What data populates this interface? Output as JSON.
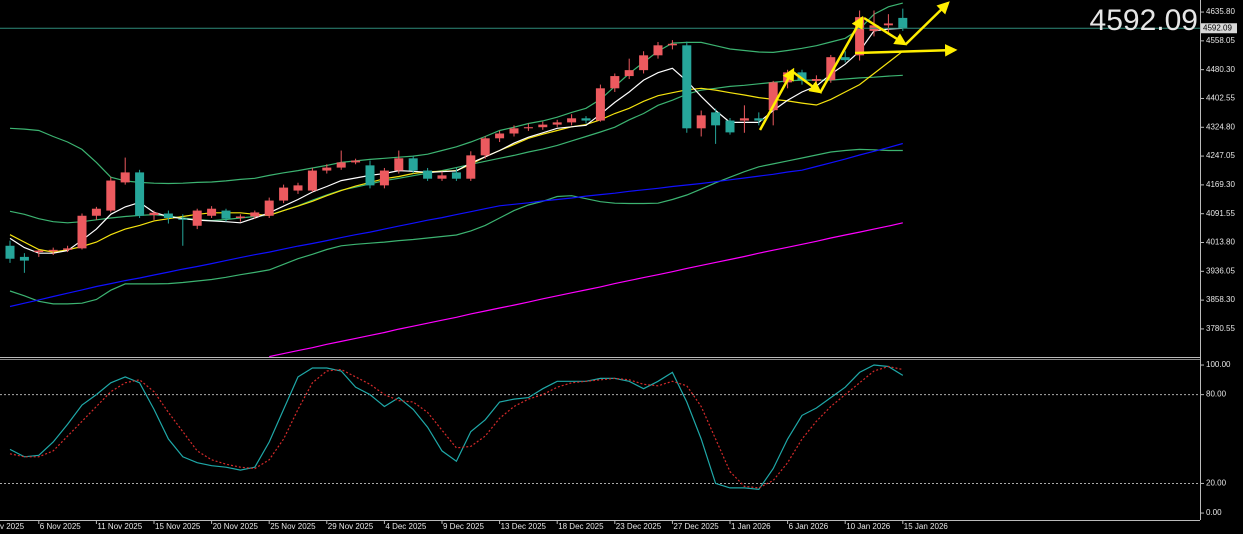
{
  "chart_data": [
    {
      "type": "candlestick",
      "categories": [
        null,
        null,
        "6 Nov 2025",
        null,
        null,
        null,
        "11 Nov 2025",
        null,
        null,
        null,
        "15 Nov 2025",
        null,
        null,
        null,
        "20 Nov 2025",
        null,
        null,
        null,
        "25 Nov 2025",
        null,
        null,
        null,
        "29 Nov 2025",
        null,
        null,
        null,
        "4 Dec 2025",
        null,
        null,
        null,
        "9 Dec 2025",
        null,
        null,
        null,
        "13 Dec 2025",
        null,
        null,
        null,
        "18 Dec 2025",
        null,
        null,
        null,
        "23 Dec 2025",
        null,
        null,
        null,
        "27 Dec 2025",
        null,
        null,
        null,
        "1 Jan 2026",
        null,
        null,
        null,
        "6 Jan 2026",
        null,
        null,
        null,
        "10 Jan 2026",
        null,
        null,
        null,
        "15 Jan 2026"
      ],
      "date_label_cut": "v 2025",
      "open": [
        4005,
        3975,
        3988,
        3990,
        3994,
        3998,
        4086,
        4100,
        4176,
        4203,
        4088,
        4092,
        4078,
        4059,
        4086,
        4100,
        4080,
        4084,
        4086,
        4127,
        4154,
        4154,
        4208,
        4216,
        4230,
        4222,
        4168,
        4208,
        4241,
        4208,
        4186,
        4203,
        4186,
        4249,
        4295,
        4308,
        4322,
        4325,
        4332,
        4338,
        4349,
        4343,
        4430,
        4463,
        4479,
        4519,
        4546,
        4546,
        4322,
        4365,
        4343,
        4343,
        4349,
        4371,
        4446,
        4473,
        4450,
        4452,
        4514,
        4519,
        4585,
        4600,
        4620
      ],
      "high": [
        4019,
        3985,
        3995,
        4000,
        4005,
        4092,
        4110,
        4190,
        4243,
        4210,
        4100,
        4100,
        4090,
        4105,
        4112,
        4105,
        4090,
        4100,
        4135,
        4170,
        4175,
        4215,
        4225,
        4262,
        4240,
        4235,
        4215,
        4262,
        4248,
        4215,
        4205,
        4215,
        4260,
        4300,
        4315,
        4330,
        4335,
        4340,
        4345,
        4360,
        4355,
        4440,
        4470,
        4510,
        4530,
        4555,
        4560,
        4556,
        4370,
        4375,
        4350,
        4384,
        4365,
        4450,
        4480,
        4480,
        4465,
        4520,
        4530,
        4640,
        4640,
        4630,
        4645
      ],
      "low": [
        3959,
        3932,
        3975,
        3980,
        3988,
        3995,
        4075,
        4095,
        4170,
        4080,
        4075,
        4065,
        4005,
        4050,
        4080,
        4070,
        4070,
        4078,
        4080,
        4120,
        4145,
        4150,
        4200,
        4210,
        4225,
        4160,
        4160,
        4200,
        4200,
        4180,
        4180,
        4180,
        4180,
        4240,
        4285,
        4300,
        4315,
        4318,
        4325,
        4330,
        4335,
        4340,
        4420,
        4455,
        4470,
        4510,
        4535,
        4310,
        4300,
        4280,
        4305,
        4310,
        4330,
        4330,
        4430,
        4440,
        4440,
        4445,
        4500,
        4505,
        4570,
        4580,
        4585
      ],
      "close": [
        3970,
        3965,
        3992,
        3994,
        3998,
        4086,
        4105,
        4181,
        4203,
        4086,
        4094,
        4080,
        4075,
        4100,
        4105,
        4078,
        4084,
        4095,
        4127,
        4162,
        4168,
        4208,
        4216,
        4230,
        4235,
        4168,
        4208,
        4241,
        4208,
        4186,
        4195,
        4186,
        4249,
        4295,
        4308,
        4322,
        4325,
        4332,
        4338,
        4349,
        4343,
        4430,
        4463,
        4479,
        4519,
        4546,
        4550,
        4322,
        4357,
        4330,
        4311,
        4349,
        4343,
        4446,
        4473,
        4452,
        4455,
        4514,
        4506,
        4622,
        4600,
        4605,
        4592.09
      ],
      "up_color": "#ec5a5f",
      "down_color": "#26a69a",
      "series": [
        {
          "color": "#3cb371",
          "values": [
            4322,
            4320,
            4316,
            4300,
            4285,
            4265,
            4230,
            4190,
            4180,
            4176,
            4174,
            4173,
            4174,
            4176,
            4177,
            4180,
            4184,
            4187,
            4195,
            4202,
            4208,
            4215,
            4222,
            4230,
            4234,
            4238,
            4241,
            4244,
            4247,
            4252,
            4262,
            4272,
            4285,
            4300,
            4316,
            4325,
            4335,
            4342,
            4352,
            4365,
            4376,
            4400,
            4435,
            4470,
            4500,
            4530,
            4552,
            4554,
            4554,
            4545,
            4536,
            4532,
            4528,
            4527,
            4532,
            4538,
            4545,
            4555,
            4565,
            4590,
            4630,
            4650,
            4660
          ]
        },
        {
          "color": "#3cb371",
          "values": [
            4098,
            4090,
            4078,
            4070,
            4067,
            4070,
            4075,
            4080,
            4084,
            4087,
            4089,
            4085,
            4080,
            4076,
            4073,
            4076,
            4080,
            4084,
            4088,
            4100,
            4113,
            4128,
            4142,
            4155,
            4163,
            4172,
            4181,
            4187,
            4194,
            4201,
            4208,
            4216,
            4225,
            4233,
            4241,
            4249,
            4258,
            4266,
            4276,
            4288,
            4300,
            4312,
            4325,
            4345,
            4362,
            4384,
            4398,
            4414,
            4425,
            4430,
            4435,
            4438,
            4442,
            4446,
            4450,
            4452,
            4452,
            4452,
            4455,
            4458,
            4460,
            4463,
            4465
          ]
        },
        {
          "color": "#3cb371",
          "values": [
            3883,
            3870,
            3855,
            3848,
            3848,
            3850,
            3860,
            3885,
            3902,
            3902,
            3902,
            3903,
            3906,
            3910,
            3914,
            3920,
            3927,
            3933,
            3940,
            3955,
            3970,
            3982,
            3995,
            4005,
            4009,
            4012,
            4015,
            4019,
            4022,
            4026,
            4030,
            4034,
            4045,
            4060,
            4080,
            4100,
            4115,
            4125,
            4138,
            4140,
            4132,
            4124,
            4120,
            4119,
            4119,
            4120,
            4130,
            4142,
            4158,
            4175,
            4190,
            4205,
            4218,
            4226,
            4234,
            4242,
            4250,
            4258,
            4262,
            4265,
            4264,
            4262,
            4262
          ]
        },
        {
          "color": "#1010ff",
          "values": [
            3841,
            3850,
            3859,
            3868,
            3877,
            3886,
            3895,
            3903,
            3911,
            3918,
            3926,
            3934,
            3942,
            3949,
            3957,
            3965,
            3973,
            3981,
            3988,
            3996,
            4004,
            4011,
            4019,
            4027,
            4035,
            4042,
            4050,
            4058,
            4066,
            4074,
            4081,
            4089,
            4097,
            4105,
            4113,
            4117,
            4121,
            4126,
            4130,
            4134,
            4139,
            4143,
            4147,
            4152,
            4156,
            4160,
            4165,
            4169,
            4173,
            4178,
            4183,
            4188,
            4193,
            4198,
            4204,
            4209,
            4219,
            4229,
            4239,
            4250,
            4260,
            4270,
            4281
          ]
        },
        {
          "color": "#ff00ff",
          "values": [
            null,
            null,
            null,
            null,
            null,
            null,
            null,
            null,
            null,
            null,
            null,
            null,
            null,
            null,
            null,
            null,
            null,
            null,
            3706,
            3714,
            3722,
            3730,
            3739,
            3747,
            3755,
            3763,
            3771,
            3780,
            3788,
            3796,
            3804,
            3812,
            3821,
            3829,
            3837,
            3845,
            3853,
            3862,
            3870,
            3878,
            3886,
            3894,
            3903,
            3911,
            3919,
            3927,
            3935,
            3944,
            3952,
            3960,
            3968,
            3976,
            3985,
            3993,
            4001,
            4009,
            4017,
            4026,
            4034,
            4042,
            4050,
            4058,
            4067
          ]
        },
        {
          "color": "#f5e30f",
          "values": [
            4035,
            4015,
            3995,
            3988,
            3994,
            4003,
            4015,
            4035,
            4050,
            4060,
            4072,
            4078,
            4084,
            4090,
            4094,
            4094,
            4094,
            4090,
            4087,
            4100,
            4112,
            4125,
            4140,
            4154,
            4166,
            4176,
            4186,
            4192,
            4200,
            4205,
            4206,
            4208,
            4225,
            4245,
            4262,
            4278,
            4295,
            4306,
            4316,
            4326,
            4332,
            4345,
            4362,
            4376,
            4395,
            4410,
            4418,
            4426,
            4430,
            4425,
            4418,
            4412,
            4405,
            4400,
            4396,
            4390,
            4385,
            4400,
            4420,
            4440,
            4470,
            4500,
            4530
          ]
        },
        {
          "color": "#ffffff",
          "values": [
            4025,
            4000,
            3985,
            3985,
            3992,
            4020,
            4050,
            4090,
            4110,
            4122,
            4095,
            4084,
            4078,
            4074,
            4072,
            4070,
            4067,
            4080,
            4094,
            4112,
            4130,
            4150,
            4165,
            4181,
            4188,
            4195,
            4200,
            4208,
            4206,
            4203,
            4205,
            4207,
            4228,
            4245,
            4262,
            4282,
            4298,
            4310,
            4322,
            4326,
            4330,
            4360,
            4392,
            4420,
            4452,
            4472,
            4484,
            4450,
            4408,
            4370,
            4338,
            4338,
            4338,
            4370,
            4398,
            4420,
            4436,
            4468,
            4495,
            4530,
            4585,
            4590,
            4592
          ]
        }
      ],
      "ylim": [
        3704.8,
        4668.3
      ],
      "yticks": [
        {
          "value": 4635.8,
          "label": "4635.80"
        },
        4558.05,
        {
          "value": 4480.3,
          "label": "4480.30"
        },
        4402.55,
        {
          "value": 4324.8,
          "label": "4324.80"
        },
        4247.05,
        {
          "value": 4169.3,
          "label": "4169.30"
        },
        4091.55,
        {
          "value": 4013.8,
          "label": "4013.80"
        },
        3936.05,
        {
          "value": 3858.3,
          "label": "3858.30"
        },
        3780.55
      ],
      "current_price": 4592.09,
      "price_color": "#ff1a1a"
    },
    {
      "type": "line",
      "series": [
        {
          "color": "#1fa8a8",
          "values": [
            43,
            38,
            39,
            48,
            60,
            73,
            80,
            88,
            92,
            88,
            70,
            50,
            38,
            34,
            32,
            31,
            29,
            31,
            48,
            70,
            92,
            98,
            98,
            96,
            85,
            80,
            72,
            78,
            70,
            58,
            42,
            35,
            55,
            63,
            75,
            77,
            78,
            84,
            89,
            89,
            89,
            91,
            91,
            89,
            84,
            89,
            95,
            75,
            50,
            20,
            17,
            17,
            16,
            30,
            50,
            66,
            71,
            78,
            85,
            95,
            100,
            99,
            93
          ]
        },
        {
          "color": "#d42a2a",
          "dashed": true,
          "values": [
            40,
            38,
            38,
            42,
            52,
            62,
            72,
            82,
            88,
            90,
            82,
            68,
            55,
            42,
            36,
            33,
            31,
            30,
            36,
            50,
            70,
            88,
            96,
            97,
            92,
            87,
            80,
            76,
            75,
            68,
            56,
            44,
            45,
            52,
            64,
            72,
            77,
            80,
            85,
            88,
            89,
            90,
            91,
            90,
            87,
            86,
            89,
            86,
            72,
            50,
            28,
            18,
            17,
            22,
            34,
            50,
            62,
            72,
            80,
            88,
            96,
            99,
            97
          ]
        }
      ],
      "ylim": [
        -4.7,
        103.4
      ],
      "yticks": [
        {
          "value": 100,
          "label": "100.00"
        },
        {
          "value": 80,
          "label": "80.00"
        },
        {
          "value": 20,
          "label": "20.00"
        },
        {
          "value": 0,
          "label": "0.00"
        }
      ],
      "dashed_levels": [
        80,
        20
      ]
    }
  ]
}
